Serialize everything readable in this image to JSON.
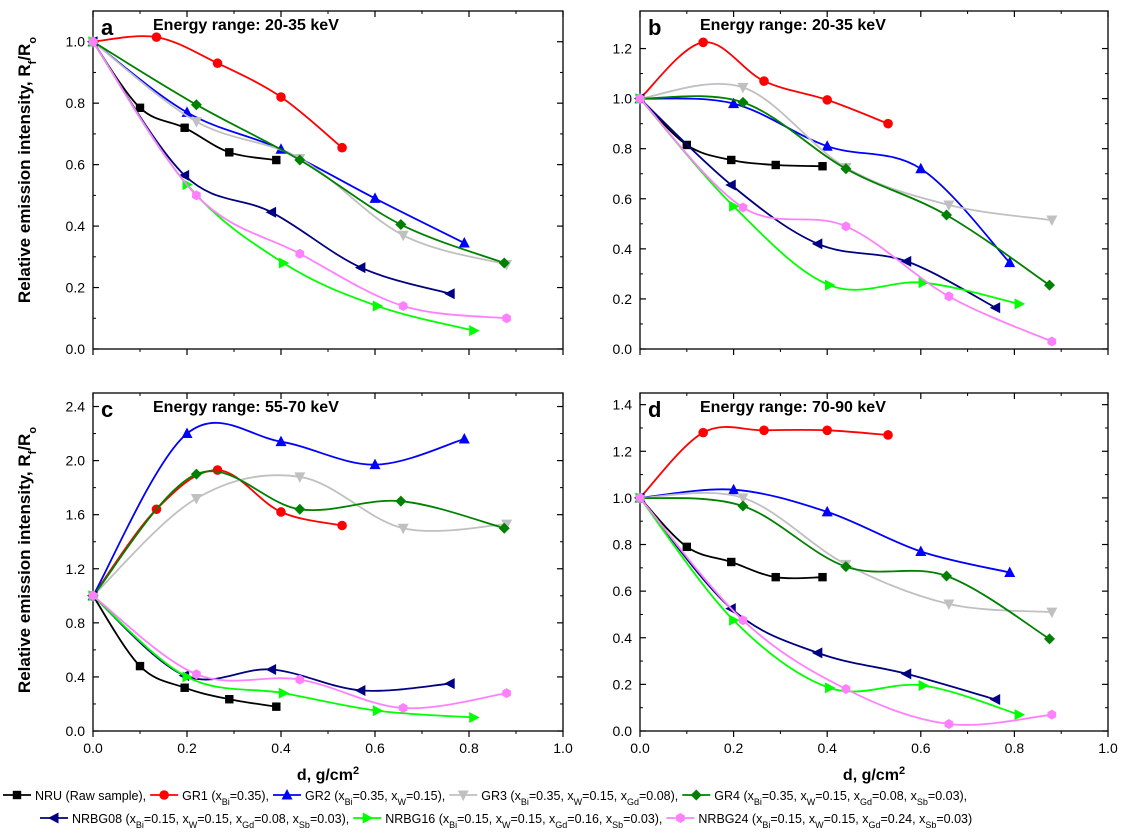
{
  "y_axis_label": "Relative emission intensity, R",
  "y_axis_label_sub1": "f",
  "y_axis_label_mid": "/R",
  "y_axis_label_sub2": "o",
  "x_axis_label": "d, g/cm",
  "x_axis_label_sup": "2",
  "series_styles": [
    {
      "name": "NRU",
      "color": "#000000",
      "marker": "square"
    },
    {
      "name": "GR1",
      "color": "#ff0000",
      "marker": "circle"
    },
    {
      "name": "GR2",
      "color": "#0000ff",
      "marker": "triangle-up"
    },
    {
      "name": "GR3",
      "color": "#c0c0c0",
      "marker": "triangle-down"
    },
    {
      "name": "GR4",
      "color": "#008000",
      "marker": "diamond"
    },
    {
      "name": "NRBG08",
      "color": "#000080",
      "marker": "triangle-left"
    },
    {
      "name": "NRBG16",
      "color": "#00ff00",
      "marker": "triangle-right"
    },
    {
      "name": "NRBG24",
      "color": "#ff80ff",
      "marker": "hexagon"
    }
  ],
  "legend": [
    [
      {
        "text": "NRU (Raw sample), ",
        "series": 0
      },
      {
        "text": "GR1 (x_Bi=0.35), ",
        "series": 1
      },
      {
        "text": "GR2 (x_Bi=0.35, x_W=0.15), ",
        "series": 2
      },
      {
        "text": "GR3 (x_Bi=0.35, x_W=0.15, x_Gd=0.08), ",
        "series": 3
      },
      {
        "text": "GR4 (x_Bi=0.35, x_W=0.15, x_Gd=0.08, x_Sb=0.03),",
        "series": 4
      }
    ],
    [
      {
        "text": "NRBG08 (x_Bi=0.15, x_W=0.15, x_Gd=0.08, x_Sb=0.03), ",
        "series": 5
      },
      {
        "text": "NRBG16 (x_Bi=0.15, x_W=0.15, x_Gd=0.16, x_Sb=0.03), ",
        "series": 6
      },
      {
        "text": "NRBG24 (x_Bi=0.15, x_W=0.15, x_Gd=0.24, x_Sb=0.03)",
        "series": 7
      }
    ]
  ],
  "chart_data": [
    {
      "type": "line",
      "panel": "a",
      "title": "Energy range: 20-35 keV",
      "xlim": [
        0,
        1.0
      ],
      "ylim": [
        0,
        1.1
      ],
      "xticks": [
        0.0,
        0.2,
        0.4,
        0.6,
        0.8,
        1.0
      ],
      "yticks": [
        0.0,
        0.2,
        0.4,
        0.6,
        0.8,
        1.0
      ],
      "xtick_labels_shown": false,
      "ytick_decimals": 1,
      "series": [
        {
          "name": "NRU",
          "x": [
            0,
            0.1,
            0.195,
            0.29,
            0.39
          ],
          "y": [
            1.0,
            0.785,
            0.72,
            0.64,
            0.615
          ]
        },
        {
          "name": "GR1",
          "x": [
            0,
            0.135,
            0.265,
            0.4,
            0.53
          ],
          "y": [
            1.0,
            1.015,
            0.93,
            0.82,
            0.655
          ]
        },
        {
          "name": "GR2",
          "x": [
            0,
            0.2,
            0.4,
            0.6,
            0.79
          ],
          "y": [
            1.0,
            0.77,
            0.65,
            0.49,
            0.345
          ]
        },
        {
          "name": "GR3",
          "x": [
            0,
            0.22,
            0.44,
            0.66,
            0.88
          ],
          "y": [
            1.0,
            0.74,
            0.62,
            0.37,
            0.275
          ]
        },
        {
          "name": "GR4",
          "x": [
            0,
            0.22,
            0.44,
            0.655,
            0.875
          ],
          "y": [
            1.0,
            0.795,
            0.615,
            0.405,
            0.28
          ]
        },
        {
          "name": "NRBG08",
          "x": [
            0,
            0.195,
            0.38,
            0.57,
            0.76
          ],
          "y": [
            1.0,
            0.565,
            0.445,
            0.265,
            0.18
          ]
        },
        {
          "name": "NRBG16",
          "x": [
            0,
            0.2,
            0.405,
            0.605,
            0.81
          ],
          "y": [
            1.0,
            0.535,
            0.28,
            0.14,
            0.06
          ]
        },
        {
          "name": "NRBG24",
          "x": [
            0,
            0.22,
            0.44,
            0.66,
            0.88
          ],
          "y": [
            1.0,
            0.5,
            0.31,
            0.14,
            0.1
          ]
        }
      ]
    },
    {
      "type": "line",
      "panel": "b",
      "title": "Energy range: 20-35 keV",
      "xlim": [
        0,
        1.0
      ],
      "ylim": [
        0,
        1.35
      ],
      "xticks": [
        0.0,
        0.2,
        0.4,
        0.6,
        0.8,
        1.0
      ],
      "yticks": [
        0.0,
        0.2,
        0.4,
        0.6,
        0.8,
        1.0,
        1.2
      ],
      "xtick_labels_shown": false,
      "ytick_decimals": 1,
      "series": [
        {
          "name": "NRU",
          "x": [
            0,
            0.1,
            0.195,
            0.29,
            0.39
          ],
          "y": [
            1.0,
            0.815,
            0.755,
            0.735,
            0.73
          ]
        },
        {
          "name": "GR1",
          "x": [
            0,
            0.135,
            0.265,
            0.4,
            0.53
          ],
          "y": [
            1.0,
            1.225,
            1.07,
            0.995,
            0.9
          ]
        },
        {
          "name": "GR2",
          "x": [
            0,
            0.2,
            0.4,
            0.6,
            0.79
          ],
          "y": [
            1.0,
            0.98,
            0.81,
            0.72,
            0.345
          ]
        },
        {
          "name": "GR3",
          "x": [
            0,
            0.22,
            0.44,
            0.66,
            0.88
          ],
          "y": [
            1.0,
            1.045,
            0.725,
            0.575,
            0.515
          ]
        },
        {
          "name": "GR4",
          "x": [
            0,
            0.22,
            0.44,
            0.655,
            0.875
          ],
          "y": [
            1.0,
            0.985,
            0.72,
            0.535,
            0.255
          ]
        },
        {
          "name": "NRBG08",
          "x": [
            0,
            0.195,
            0.38,
            0.57,
            0.76
          ],
          "y": [
            1.0,
            0.655,
            0.42,
            0.35,
            0.165
          ]
        },
        {
          "name": "NRBG16",
          "x": [
            0,
            0.2,
            0.405,
            0.605,
            0.81
          ],
          "y": [
            1.0,
            0.57,
            0.255,
            0.265,
            0.18
          ]
        },
        {
          "name": "NRBG24",
          "x": [
            0,
            0.22,
            0.44,
            0.66,
            0.88
          ],
          "y": [
            1.0,
            0.565,
            0.49,
            0.21,
            0.03
          ]
        }
      ]
    },
    {
      "type": "line",
      "panel": "c",
      "title": "Energy range: 55-70 keV",
      "xlim": [
        0,
        1.0
      ],
      "ylim": [
        0,
        2.5
      ],
      "xticks": [
        0.0,
        0.2,
        0.4,
        0.6,
        0.8,
        1.0
      ],
      "yticks": [
        0.0,
        0.4,
        0.8,
        1.2,
        1.6,
        2.0,
        2.4
      ],
      "xtick_labels_shown": true,
      "ytick_decimals": 1,
      "series": [
        {
          "name": "NRU",
          "x": [
            0,
            0.1,
            0.195,
            0.29,
            0.39
          ],
          "y": [
            1.0,
            0.48,
            0.32,
            0.235,
            0.18
          ]
        },
        {
          "name": "GR1",
          "x": [
            0,
            0.135,
            0.265,
            0.4,
            0.53
          ],
          "y": [
            1.0,
            1.64,
            1.93,
            1.62,
            1.52
          ]
        },
        {
          "name": "GR2",
          "x": [
            0,
            0.2,
            0.4,
            0.6,
            0.79
          ],
          "y": [
            1.0,
            2.2,
            2.14,
            1.97,
            2.16
          ]
        },
        {
          "name": "GR3",
          "x": [
            0,
            0.22,
            0.44,
            0.66,
            0.88
          ],
          "y": [
            1.0,
            1.72,
            1.88,
            1.5,
            1.53
          ]
        },
        {
          "name": "GR4",
          "x": [
            0,
            0.22,
            0.44,
            0.655,
            0.875
          ],
          "y": [
            1.0,
            1.9,
            1.64,
            1.7,
            1.5
          ]
        },
        {
          "name": "NRBG08",
          "x": [
            0,
            0.195,
            0.38,
            0.57,
            0.76
          ],
          "y": [
            1.0,
            0.41,
            0.455,
            0.3,
            0.35
          ]
        },
        {
          "name": "NRBG16",
          "x": [
            0,
            0.2,
            0.405,
            0.605,
            0.81
          ],
          "y": [
            1.0,
            0.4,
            0.28,
            0.15,
            0.1
          ]
        },
        {
          "name": "NRBG24",
          "x": [
            0,
            0.22,
            0.44,
            0.66,
            0.88
          ],
          "y": [
            1.0,
            0.42,
            0.38,
            0.17,
            0.28
          ]
        }
      ]
    },
    {
      "type": "line",
      "panel": "d",
      "title": "Energy range: 70-90 keV",
      "xlim": [
        0,
        1.0
      ],
      "ylim": [
        0,
        1.45
      ],
      "xticks": [
        0.0,
        0.2,
        0.4,
        0.6,
        0.8,
        1.0
      ],
      "yticks": [
        0.0,
        0.2,
        0.4,
        0.6,
        0.8,
        1.0,
        1.2,
        1.4
      ],
      "xtick_labels_shown": true,
      "ytick_decimals": 1,
      "series": [
        {
          "name": "NRU",
          "x": [
            0,
            0.1,
            0.195,
            0.29,
            0.39
          ],
          "y": [
            1.0,
            0.79,
            0.725,
            0.66,
            0.66
          ]
        },
        {
          "name": "GR1",
          "x": [
            0,
            0.135,
            0.265,
            0.4,
            0.53
          ],
          "y": [
            1.0,
            1.28,
            1.29,
            1.29,
            1.27
          ]
        },
        {
          "name": "GR2",
          "x": [
            0,
            0.2,
            0.4,
            0.6,
            0.79
          ],
          "y": [
            1.0,
            1.035,
            0.94,
            0.77,
            0.68
          ]
        },
        {
          "name": "GR3",
          "x": [
            0,
            0.22,
            0.44,
            0.66,
            0.88
          ],
          "y": [
            1.0,
            1.0,
            0.715,
            0.545,
            0.51
          ]
        },
        {
          "name": "GR4",
          "x": [
            0,
            0.22,
            0.44,
            0.655,
            0.875
          ],
          "y": [
            1.0,
            0.965,
            0.705,
            0.665,
            0.395
          ]
        },
        {
          "name": "NRBG08",
          "x": [
            0,
            0.195,
            0.38,
            0.57,
            0.76
          ],
          "y": [
            1.0,
            0.525,
            0.335,
            0.245,
            0.135
          ]
        },
        {
          "name": "NRBG16",
          "x": [
            0,
            0.2,
            0.405,
            0.605,
            0.81
          ],
          "y": [
            1.0,
            0.475,
            0.185,
            0.195,
            0.07
          ]
        },
        {
          "name": "NRBG24",
          "x": [
            0,
            0.22,
            0.44,
            0.66,
            0.88
          ],
          "y": [
            1.0,
            0.475,
            0.18,
            0.03,
            0.07
          ]
        }
      ]
    }
  ]
}
